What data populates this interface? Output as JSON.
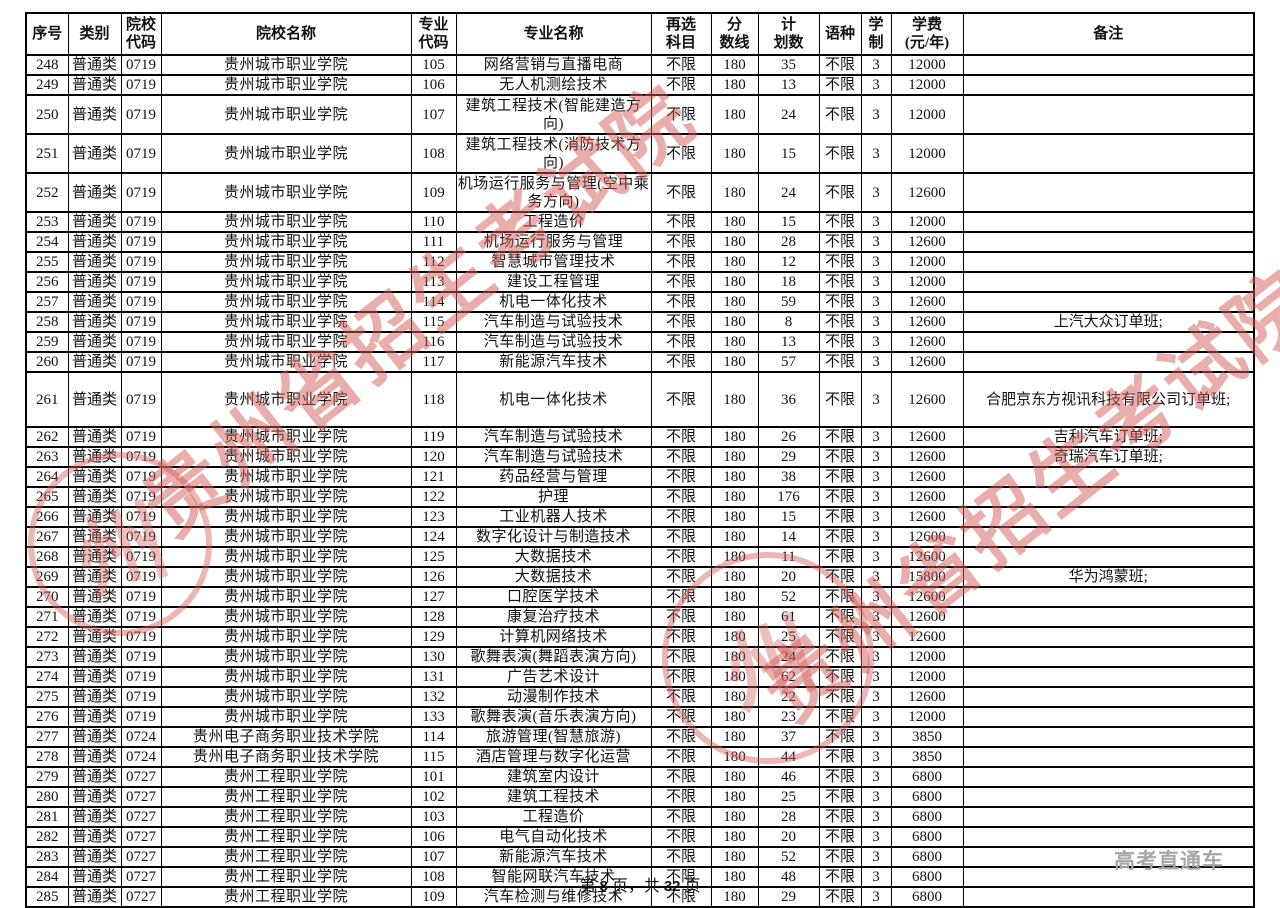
{
  "table": {
    "headers": [
      "序号",
      "类别",
      "院校\n代码",
      "院校名称",
      "专业\n代码",
      "专业名称",
      "再选\n科目",
      "分\n数线",
      "计\n划数",
      "语种",
      "学制",
      "学费\n(元/年)",
      "备注"
    ],
    "rows": [
      {
        "cells": [
          "248",
          "普通类",
          "0719",
          "贵州城市职业学院",
          "105",
          "网络营销与直播电商",
          "不限",
          "180",
          "35",
          "不限",
          "3",
          "12000",
          ""
        ]
      },
      {
        "cells": [
          "249",
          "普通类",
          "0719",
          "贵州城市职业学院",
          "106",
          "无人机测绘技术",
          "不限",
          "180",
          "13",
          "不限",
          "3",
          "12000",
          ""
        ]
      },
      {
        "cells": [
          "250",
          "普通类",
          "0719",
          "贵州城市职业学院",
          "107",
          "建筑工程技术(智能建造方向)",
          "不限",
          "180",
          "24",
          "不限",
          "3",
          "12000",
          ""
        ],
        "h": 2
      },
      {
        "cells": [
          "251",
          "普通类",
          "0719",
          "贵州城市职业学院",
          "108",
          "建筑工程技术(消防技术方向)",
          "不限",
          "180",
          "15",
          "不限",
          "3",
          "12000",
          ""
        ],
        "h": 2
      },
      {
        "cells": [
          "252",
          "普通类",
          "0719",
          "贵州城市职业学院",
          "109",
          "机场运行服务与管理(空中乘务方向)",
          "不限",
          "180",
          "24",
          "不限",
          "3",
          "12600",
          ""
        ],
        "h": 2
      },
      {
        "cells": [
          "253",
          "普通类",
          "0719",
          "贵州城市职业学院",
          "110",
          "工程造价",
          "不限",
          "180",
          "15",
          "不限",
          "3",
          "12000",
          ""
        ]
      },
      {
        "cells": [
          "254",
          "普通类",
          "0719",
          "贵州城市职业学院",
          "111",
          "机场运行服务与管理",
          "不限",
          "180",
          "28",
          "不限",
          "3",
          "12600",
          ""
        ]
      },
      {
        "cells": [
          "255",
          "普通类",
          "0719",
          "贵州城市职业学院",
          "112",
          "智慧城市管理技术",
          "不限",
          "180",
          "12",
          "不限",
          "3",
          "12000",
          ""
        ]
      },
      {
        "cells": [
          "256",
          "普通类",
          "0719",
          "贵州城市职业学院",
          "113",
          "建设工程管理",
          "不限",
          "180",
          "18",
          "不限",
          "3",
          "12000",
          ""
        ]
      },
      {
        "cells": [
          "257",
          "普通类",
          "0719",
          "贵州城市职业学院",
          "114",
          "机电一体化技术",
          "不限",
          "180",
          "59",
          "不限",
          "3",
          "12600",
          ""
        ]
      },
      {
        "cells": [
          "258",
          "普通类",
          "0719",
          "贵州城市职业学院",
          "115",
          "汽车制造与试验技术",
          "不限",
          "180",
          "8",
          "不限",
          "3",
          "12600",
          "上汽大众订单班;"
        ]
      },
      {
        "cells": [
          "259",
          "普通类",
          "0719",
          "贵州城市职业学院",
          "116",
          "汽车制造与试验技术",
          "不限",
          "180",
          "13",
          "不限",
          "3",
          "12600",
          ""
        ]
      },
      {
        "cells": [
          "260",
          "普通类",
          "0719",
          "贵州城市职业学院",
          "117",
          "新能源汽车技术",
          "不限",
          "180",
          "57",
          "不限",
          "3",
          "12600",
          ""
        ]
      },
      {
        "cells": [
          "261",
          "普通类",
          "0719",
          "贵州城市职业学院",
          "118",
          "机电一体化技术",
          "不限",
          "180",
          "36",
          "不限",
          "3",
          "12600",
          "合肥京东方视讯科技有限公司订单班;"
        ],
        "h": 3
      },
      {
        "cells": [
          "262",
          "普通类",
          "0719",
          "贵州城市职业学院",
          "119",
          "汽车制造与试验技术",
          "不限",
          "180",
          "26",
          "不限",
          "3",
          "12600",
          "吉利汽车订单班;"
        ]
      },
      {
        "cells": [
          "263",
          "普通类",
          "0719",
          "贵州城市职业学院",
          "120",
          "汽车制造与试验技术",
          "不限",
          "180",
          "29",
          "不限",
          "3",
          "12600",
          "奇瑞汽车订单班;"
        ]
      },
      {
        "cells": [
          "264",
          "普通类",
          "0719",
          "贵州城市职业学院",
          "121",
          "药品经营与管理",
          "不限",
          "180",
          "38",
          "不限",
          "3",
          "12600",
          ""
        ]
      },
      {
        "cells": [
          "265",
          "普通类",
          "0719",
          "贵州城市职业学院",
          "122",
          "护理",
          "不限",
          "180",
          "176",
          "不限",
          "3",
          "12600",
          ""
        ]
      },
      {
        "cells": [
          "266",
          "普通类",
          "0719",
          "贵州城市职业学院",
          "123",
          "工业机器人技术",
          "不限",
          "180",
          "15",
          "不限",
          "3",
          "12600",
          ""
        ]
      },
      {
        "cells": [
          "267",
          "普通类",
          "0719",
          "贵州城市职业学院",
          "124",
          "数字化设计与制造技术",
          "不限",
          "180",
          "14",
          "不限",
          "3",
          "12600",
          ""
        ]
      },
      {
        "cells": [
          "268",
          "普通类",
          "0719",
          "贵州城市职业学院",
          "125",
          "大数据技术",
          "不限",
          "180",
          "11",
          "不限",
          "3",
          "12600",
          ""
        ]
      },
      {
        "cells": [
          "269",
          "普通类",
          "0719",
          "贵州城市职业学院",
          "126",
          "大数据技术",
          "不限",
          "180",
          "20",
          "不限",
          "3",
          "15800",
          "华为鸿蒙班;"
        ]
      },
      {
        "cells": [
          "270",
          "普通类",
          "0719",
          "贵州城市职业学院",
          "127",
          "口腔医学技术",
          "不限",
          "180",
          "52",
          "不限",
          "3",
          "12600",
          ""
        ]
      },
      {
        "cells": [
          "271",
          "普通类",
          "0719",
          "贵州城市职业学院",
          "128",
          "康复治疗技术",
          "不限",
          "180",
          "61",
          "不限",
          "3",
          "12600",
          ""
        ]
      },
      {
        "cells": [
          "272",
          "普通类",
          "0719",
          "贵州城市职业学院",
          "129",
          "计算机网络技术",
          "不限",
          "180",
          "25",
          "不限",
          "3",
          "12600",
          ""
        ]
      },
      {
        "cells": [
          "273",
          "普通类",
          "0719",
          "贵州城市职业学院",
          "130",
          "歌舞表演(舞蹈表演方向)",
          "不限",
          "180",
          "24",
          "不限",
          "3",
          "12000",
          ""
        ]
      },
      {
        "cells": [
          "274",
          "普通类",
          "0719",
          "贵州城市职业学院",
          "131",
          "广告艺术设计",
          "不限",
          "180",
          "62",
          "不限",
          "3",
          "12000",
          ""
        ]
      },
      {
        "cells": [
          "275",
          "普通类",
          "0719",
          "贵州城市职业学院",
          "132",
          "动漫制作技术",
          "不限",
          "180",
          "22",
          "不限",
          "3",
          "12600",
          ""
        ]
      },
      {
        "cells": [
          "276",
          "普通类",
          "0719",
          "贵州城市职业学院",
          "133",
          "歌舞表演(音乐表演方向)",
          "不限",
          "180",
          "23",
          "不限",
          "3",
          "12000",
          ""
        ]
      },
      {
        "cells": [
          "277",
          "普通类",
          "0724",
          "贵州电子商务职业技术学院",
          "114",
          "旅游管理(智慧旅游)",
          "不限",
          "180",
          "37",
          "不限",
          "3",
          "3850",
          ""
        ]
      },
      {
        "cells": [
          "278",
          "普通类",
          "0724",
          "贵州电子商务职业技术学院",
          "115",
          "酒店管理与数字化运营",
          "不限",
          "180",
          "44",
          "不限",
          "3",
          "3850",
          ""
        ]
      },
      {
        "cells": [
          "279",
          "普通类",
          "0727",
          "贵州工程职业学院",
          "101",
          "建筑室内设计",
          "不限",
          "180",
          "46",
          "不限",
          "3",
          "6800",
          ""
        ]
      },
      {
        "cells": [
          "280",
          "普通类",
          "0727",
          "贵州工程职业学院",
          "102",
          "建筑工程技术",
          "不限",
          "180",
          "25",
          "不限",
          "3",
          "6800",
          ""
        ]
      },
      {
        "cells": [
          "281",
          "普通类",
          "0727",
          "贵州工程职业学院",
          "103",
          "工程造价",
          "不限",
          "180",
          "28",
          "不限",
          "3",
          "6800",
          ""
        ]
      },
      {
        "cells": [
          "282",
          "普通类",
          "0727",
          "贵州工程职业学院",
          "106",
          "电气自动化技术",
          "不限",
          "180",
          "20",
          "不限",
          "3",
          "6800",
          ""
        ]
      },
      {
        "cells": [
          "283",
          "普通类",
          "0727",
          "贵州工程职业学院",
          "107",
          "新能源汽车技术",
          "不限",
          "180",
          "52",
          "不限",
          "3",
          "6800",
          ""
        ]
      },
      {
        "cells": [
          "284",
          "普通类",
          "0727",
          "贵州工程职业学院",
          "108",
          "智能网联汽车技术",
          "不限",
          "180",
          "48",
          "不限",
          "3",
          "6800",
          ""
        ]
      },
      {
        "cells": [
          "285",
          "普通类",
          "0727",
          "贵州工程职业学院",
          "109",
          "汽车检测与维修技术",
          "不限",
          "180",
          "29",
          "不限",
          "3",
          "6800",
          ""
        ]
      }
    ]
  },
  "footer": {
    "prefix": "第 ",
    "page_number": "8",
    "middle": " 页，共 ",
    "total_pages": "32",
    "suffix": " 页"
  },
  "watermark": {
    "seal_text": "贵州省招生考试院",
    "seal_glyph": "州",
    "brand": "高考直通车",
    "color": "#d35e58"
  }
}
